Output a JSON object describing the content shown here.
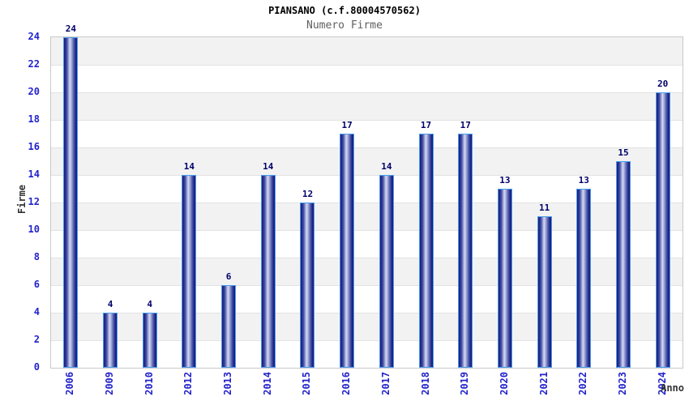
{
  "chart_data": {
    "type": "bar",
    "title": "PIANSANO (c.f.80004570562)",
    "subtitle": "Numero Firme",
    "xlabel": "Anno",
    "ylabel": "Firme",
    "categories": [
      "2006",
      "2009",
      "2010",
      "2012",
      "2013",
      "2014",
      "2015",
      "2016",
      "2017",
      "2018",
      "2019",
      "2020",
      "2021",
      "2022",
      "2023",
      "2024"
    ],
    "values": [
      24,
      4,
      4,
      14,
      6,
      14,
      12,
      17,
      14,
      17,
      17,
      13,
      11,
      13,
      15,
      20
    ],
    "ylim": [
      0,
      24
    ],
    "y_tick_step": 2,
    "y_ticks": [
      0,
      2,
      4,
      6,
      8,
      10,
      12,
      14,
      16,
      18,
      20,
      22,
      24
    ],
    "grid": "alternating-horizontal-bands",
    "legend": "none",
    "colors": {
      "bar_dark": "#191975",
      "bar_light": "#d4d9f1",
      "bar_border": "#4a9ded",
      "axis_tick_label": "#2323cc",
      "value_label": "#00006b",
      "title": "#000000",
      "subtitle": "#5f5f5f",
      "axis_title": "#333333",
      "band_gray": "#f2f2f2",
      "grid_line": "#e2e2e2",
      "plot_border": "#c9c9c9",
      "background": "#ffffff"
    }
  }
}
